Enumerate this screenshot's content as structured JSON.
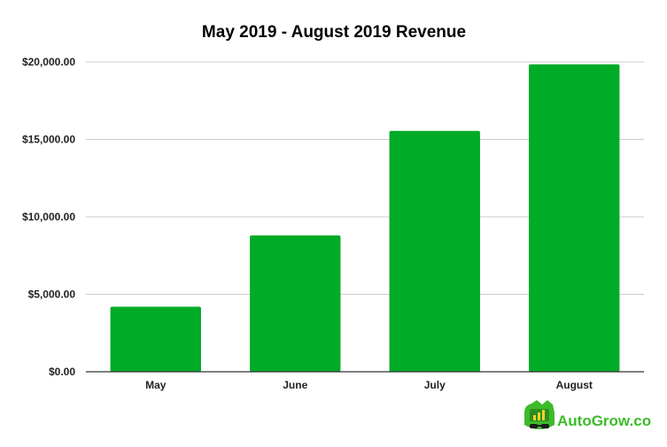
{
  "chart_data": {
    "type": "bar",
    "title": "May 2019 - August 2019 Revenue",
    "xlabel": "",
    "ylabel": "",
    "categories": [
      "May",
      "June",
      "July",
      "August"
    ],
    "values": [
      4200,
      8800,
      15550,
      19850
    ],
    "ylim": [
      0,
      20000
    ],
    "yticks": [
      0,
      5000,
      10000,
      15000,
      20000
    ],
    "ytick_labels": [
      "$0.00",
      "$5,000.00",
      "$10,000.00",
      "$15,000.00",
      "$20,000.00"
    ],
    "grid": true,
    "legend": "none",
    "bar_color": "#00ab27"
  },
  "branding": {
    "logo_text": "AutoGrow.co",
    "logo_icon": "chart-mascot-icon",
    "logo_color": "#3dbb2a"
  }
}
